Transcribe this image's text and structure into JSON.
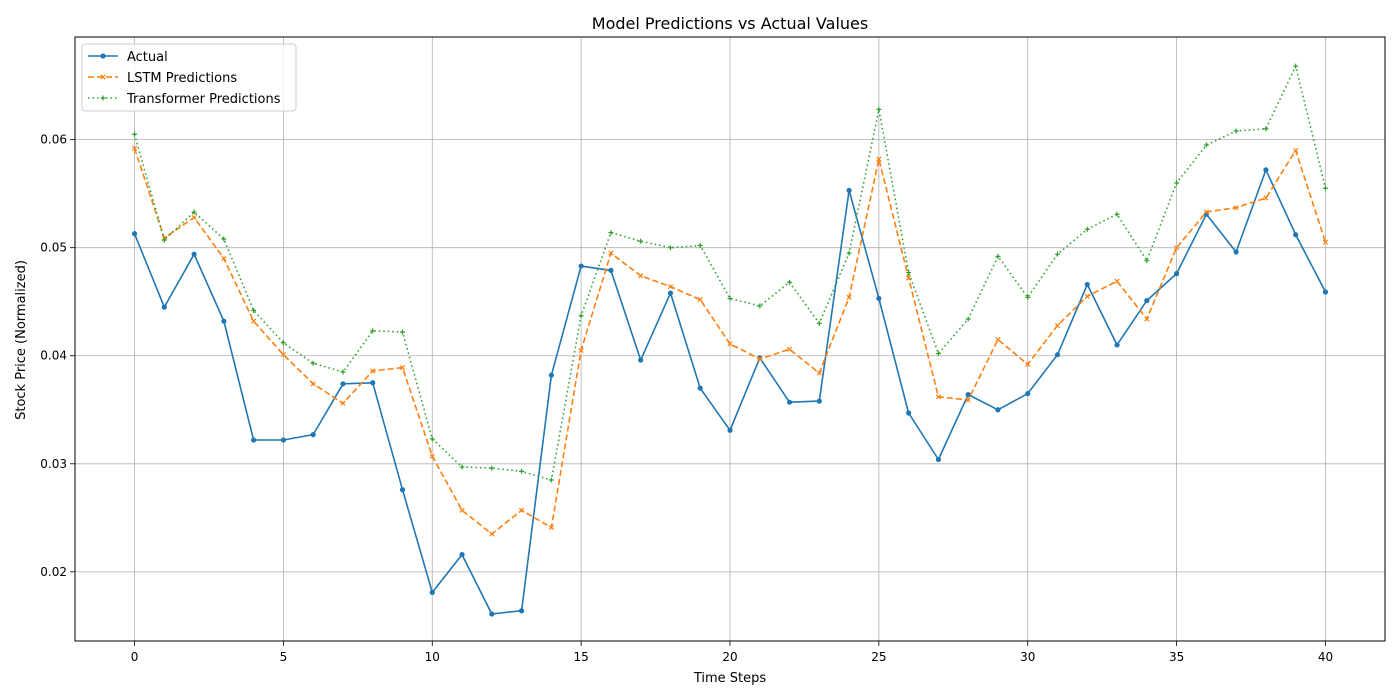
{
  "chart_data": {
    "type": "line",
    "title": "Model Predictions vs Actual Values",
    "xlabel": "Time Steps",
    "ylabel": "Stock Price (Normalized)",
    "xlim": [
      -2,
      42
    ],
    "ylim": [
      0.0136,
      0.0695
    ],
    "xticks": [
      0,
      5,
      10,
      15,
      20,
      25,
      30,
      35,
      40
    ],
    "yticks": [
      0.02,
      0.03,
      0.04,
      0.05,
      0.06
    ],
    "xtick_labels": [
      "0",
      "5",
      "10",
      "15",
      "20",
      "25",
      "30",
      "35",
      "40"
    ],
    "ytick_labels": [
      "0.02",
      "0.03",
      "0.04",
      "0.05",
      "0.06"
    ],
    "grid": true,
    "legend_position": "top-left",
    "x": [
      0,
      1,
      2,
      3,
      4,
      5,
      6,
      7,
      8,
      9,
      10,
      11,
      12,
      13,
      14,
      15,
      16,
      17,
      18,
      19,
      20,
      21,
      22,
      23,
      24,
      25,
      26,
      27,
      28,
      29,
      30,
      31,
      32,
      33,
      34,
      35,
      36,
      37,
      38,
      39,
      40
    ],
    "series": [
      {
        "name": "Actual",
        "color": "#1f77b4",
        "style": "solid",
        "marker": "dot",
        "values": [
          0.0513,
          0.0445,
          0.0494,
          0.0432,
          0.0322,
          0.0322,
          0.0327,
          0.0374,
          0.0375,
          0.0276,
          0.0181,
          0.0216,
          0.0161,
          0.0164,
          0.0382,
          0.0483,
          0.0479,
          0.0396,
          0.0458,
          0.037,
          0.0331,
          0.0398,
          0.0357,
          0.0358,
          0.0553,
          0.0453,
          0.0347,
          0.0304,
          0.0364,
          0.035,
          0.0365,
          0.0401,
          0.0466,
          0.041,
          0.0451,
          0.0476,
          0.0531,
          0.0496,
          0.0572,
          0.0512,
          0.0459
        ]
      },
      {
        "name": "LSTM Predictions",
        "color": "#ff7f0e",
        "style": "dashed",
        "marker": "x",
        "values": [
          0.0592,
          0.0509,
          0.0528,
          0.049,
          0.0432,
          0.0401,
          0.0374,
          0.0356,
          0.0386,
          0.0389,
          0.0307,
          0.0257,
          0.0235,
          0.0257,
          0.0241,
          0.0405,
          0.0495,
          0.0474,
          0.0464,
          0.0452,
          0.0411,
          0.0397,
          0.0406,
          0.0384,
          0.0454,
          0.0582,
          0.0472,
          0.0362,
          0.0359,
          0.0415,
          0.0392,
          0.0428,
          0.0455,
          0.0469,
          0.0434,
          0.05,
          0.0533,
          0.0537,
          0.0546,
          0.059,
          0.0505
        ]
      },
      {
        "name": "Transformer Predictions",
        "color": "#2ca02c",
        "style": "dotted",
        "marker": "plus",
        "values": [
          0.0605,
          0.0507,
          0.0533,
          0.0508,
          0.0442,
          0.0412,
          0.0393,
          0.0385,
          0.0423,
          0.0422,
          0.0323,
          0.0297,
          0.0296,
          0.0293,
          0.0285,
          0.0437,
          0.0514,
          0.0506,
          0.05,
          0.0502,
          0.0453,
          0.0446,
          0.0468,
          0.043,
          0.0495,
          0.0628,
          0.0477,
          0.0402,
          0.0434,
          0.0492,
          0.0454,
          0.0494,
          0.0517,
          0.0531,
          0.0488,
          0.056,
          0.0595,
          0.0608,
          0.061,
          0.0668,
          0.0555
        ]
      }
    ]
  }
}
